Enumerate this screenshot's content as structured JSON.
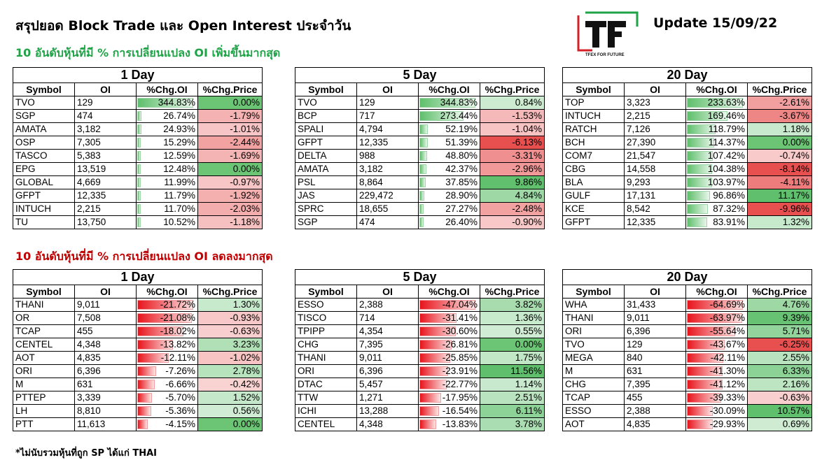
{
  "header": {
    "title": "สรุปยอด Block Trade และ Open Interest ประจำวัน",
    "update": "Update 15/09/22",
    "up_title": "10 อันดับหุ้นที่มี % การเปลี่ยนแปลง OI เพิ่มขึ้นมากสุด",
    "down_title": "10 อันดับหุ้นที่มี % การเปลี่ยนแปลง OI ลดลงมากสุด",
    "footnote": "*ไม่นับรวมหุ้นที่ถูก SP ได้แก่ THAI"
  },
  "logo": {
    "text": "TF",
    "tagline": "TFEX FOR FUTURE",
    "colors": {
      "green": "#1fa347",
      "red": "#d62027",
      "dark": "#111111"
    }
  },
  "columns": [
    "Symbol",
    "OI",
    "%Chg.OI",
    "%Chg.Price"
  ],
  "colors": {
    "pos_bar": "#5fbf6c",
    "neg_bar": "#e8141c",
    "price_up": "#5fbf6c",
    "price_down": "#e86a6a"
  },
  "tables": [
    {
      "period": "1 Day",
      "group": "up",
      "rows": [
        {
          "symbol": "TVO",
          "oi": "129",
          "chg_oi": 344.83,
          "chg_price": 0.0
        },
        {
          "symbol": "SGP",
          "oi": "474",
          "chg_oi": 26.74,
          "chg_price": -1.79
        },
        {
          "symbol": "AMATA",
          "oi": "3,182",
          "chg_oi": 24.93,
          "chg_price": -1.01
        },
        {
          "symbol": "OSP",
          "oi": "7,305",
          "chg_oi": 15.29,
          "chg_price": -2.44
        },
        {
          "symbol": "TASCO",
          "oi": "5,383",
          "chg_oi": 12.59,
          "chg_price": -1.69
        },
        {
          "symbol": "EPG",
          "oi": "13,519",
          "chg_oi": 12.48,
          "chg_price": 0.0
        },
        {
          "symbol": "GLOBAL",
          "oi": "4,669",
          "chg_oi": 11.99,
          "chg_price": -0.97
        },
        {
          "symbol": "GFPT",
          "oi": "12,335",
          "chg_oi": 11.79,
          "chg_price": -1.92
        },
        {
          "symbol": "INTUCH",
          "oi": "2,215",
          "chg_oi": 11.7,
          "chg_price": -2.03
        },
        {
          "symbol": "TU",
          "oi": "13,750",
          "chg_oi": 10.52,
          "chg_price": -1.18
        }
      ]
    },
    {
      "period": "5 Day",
      "group": "up",
      "rows": [
        {
          "symbol": "TVO",
          "oi": "129",
          "chg_oi": 344.83,
          "chg_price": 0.84
        },
        {
          "symbol": "BCP",
          "oi": "717",
          "chg_oi": 273.44,
          "chg_price": -1.53
        },
        {
          "symbol": "SPALI",
          "oi": "4,794",
          "chg_oi": 52.19,
          "chg_price": -1.04
        },
        {
          "symbol": "GFPT",
          "oi": "12,335",
          "chg_oi": 51.39,
          "chg_price": -6.13
        },
        {
          "symbol": "DELTA",
          "oi": "988",
          "chg_oi": 48.8,
          "chg_price": -3.31
        },
        {
          "symbol": "AMATA",
          "oi": "3,182",
          "chg_oi": 42.37,
          "chg_price": -2.96
        },
        {
          "symbol": "PSL",
          "oi": "8,864",
          "chg_oi": 37.85,
          "chg_price": 9.86
        },
        {
          "symbol": "JAS",
          "oi": "229,472",
          "chg_oi": 28.9,
          "chg_price": 4.84
        },
        {
          "symbol": "SPRC",
          "oi": "18,655",
          "chg_oi": 27.27,
          "chg_price": -2.48
        },
        {
          "symbol": "SGP",
          "oi": "474",
          "chg_oi": 26.4,
          "chg_price": -0.9
        }
      ]
    },
    {
      "period": "20 Day",
      "group": "up",
      "rows": [
        {
          "symbol": "TOP",
          "oi": "3,323",
          "chg_oi": 233.63,
          "chg_price": -2.61
        },
        {
          "symbol": "INTUCH",
          "oi": "2,215",
          "chg_oi": 169.46,
          "chg_price": -3.67
        },
        {
          "symbol": "RATCH",
          "oi": "7,126",
          "chg_oi": 118.79,
          "chg_price": 1.18
        },
        {
          "symbol": "BCH",
          "oi": "27,390",
          "chg_oi": 114.37,
          "chg_price": 0.0
        },
        {
          "symbol": "COM7",
          "oi": "21,547",
          "chg_oi": 107.42,
          "chg_price": -0.74
        },
        {
          "symbol": "CBG",
          "oi": "14,558",
          "chg_oi": 104.38,
          "chg_price": -8.14
        },
        {
          "symbol": "BLA",
          "oi": "9,293",
          "chg_oi": 103.97,
          "chg_price": -4.11
        },
        {
          "symbol": "GULF",
          "oi": "17,131",
          "chg_oi": 96.86,
          "chg_price": 11.17
        },
        {
          "symbol": "KCE",
          "oi": "8,542",
          "chg_oi": 87.32,
          "chg_price": -9.96
        },
        {
          "symbol": "GFPT",
          "oi": "12,335",
          "chg_oi": 83.91,
          "chg_price": 1.32
        }
      ]
    },
    {
      "period": "1 Day",
      "group": "down",
      "rows": [
        {
          "symbol": "THANI",
          "oi": "9,011",
          "chg_oi": -21.72,
          "chg_price": 1.3
        },
        {
          "symbol": "OR",
          "oi": "7,508",
          "chg_oi": -21.08,
          "chg_price": -0.93
        },
        {
          "symbol": "TCAP",
          "oi": "455",
          "chg_oi": -18.02,
          "chg_price": -0.63
        },
        {
          "symbol": "CENTEL",
          "oi": "4,348",
          "chg_oi": -13.82,
          "chg_price": 3.23
        },
        {
          "symbol": "AOT",
          "oi": "4,835",
          "chg_oi": -12.11,
          "chg_price": -1.02
        },
        {
          "symbol": "ORI",
          "oi": "6,396",
          "chg_oi": -7.26,
          "chg_price": 2.78
        },
        {
          "symbol": "M",
          "oi": "631",
          "chg_oi": -6.66,
          "chg_price": -0.42
        },
        {
          "symbol": "PTTEP",
          "oi": "3,339",
          "chg_oi": -5.7,
          "chg_price": 1.52
        },
        {
          "symbol": "LH",
          "oi": "8,810",
          "chg_oi": -5.36,
          "chg_price": 0.56
        },
        {
          "symbol": "PTT",
          "oi": "11,613",
          "chg_oi": -4.15,
          "chg_price": 0.0
        }
      ]
    },
    {
      "period": "5 Day",
      "group": "down",
      "rows": [
        {
          "symbol": "ESSO",
          "oi": "2,388",
          "chg_oi": -47.04,
          "chg_price": 3.82
        },
        {
          "symbol": "TISCO",
          "oi": "714",
          "chg_oi": -31.41,
          "chg_price": 1.36
        },
        {
          "symbol": "TPIPP",
          "oi": "4,354",
          "chg_oi": -30.6,
          "chg_price": 0.55
        },
        {
          "symbol": "CHG",
          "oi": "7,395",
          "chg_oi": -26.81,
          "chg_price": 0.0
        },
        {
          "symbol": "THANI",
          "oi": "9,011",
          "chg_oi": -25.85,
          "chg_price": 1.75
        },
        {
          "symbol": "ORI",
          "oi": "6,396",
          "chg_oi": -23.91,
          "chg_price": 11.56
        },
        {
          "symbol": "DTAC",
          "oi": "5,457",
          "chg_oi": -22.77,
          "chg_price": 1.14
        },
        {
          "symbol": "TTW",
          "oi": "1,271",
          "chg_oi": -17.95,
          "chg_price": 2.51
        },
        {
          "symbol": "ICHI",
          "oi": "13,288",
          "chg_oi": -16.54,
          "chg_price": 6.11
        },
        {
          "symbol": "CENTEL",
          "oi": "4,348",
          "chg_oi": -13.83,
          "chg_price": 3.78
        }
      ]
    },
    {
      "period": "20 Day",
      "group": "down",
      "rows": [
        {
          "symbol": "WHA",
          "oi": "31,433",
          "chg_oi": -64.69,
          "chg_price": 4.76
        },
        {
          "symbol": "THANI",
          "oi": "9,011",
          "chg_oi": -63.97,
          "chg_price": 9.39
        },
        {
          "symbol": "ORI",
          "oi": "6,396",
          "chg_oi": -55.64,
          "chg_price": 5.71
        },
        {
          "symbol": "TVO",
          "oi": "129",
          "chg_oi": -43.67,
          "chg_price": -6.25
        },
        {
          "symbol": "MEGA",
          "oi": "840",
          "chg_oi": -42.11,
          "chg_price": 2.55
        },
        {
          "symbol": "M",
          "oi": "631",
          "chg_oi": -41.3,
          "chg_price": 6.33
        },
        {
          "symbol": "CHG",
          "oi": "7,395",
          "chg_oi": -41.12,
          "chg_price": 2.16
        },
        {
          "symbol": "TCAP",
          "oi": "455",
          "chg_oi": -39.33,
          "chg_price": -0.63
        },
        {
          "symbol": "ESSO",
          "oi": "2,388",
          "chg_oi": -30.09,
          "chg_price": 10.57
        },
        {
          "symbol": "AOT",
          "oi": "4,835",
          "chg_oi": -29.93,
          "chg_price": 0.69
        }
      ]
    }
  ]
}
